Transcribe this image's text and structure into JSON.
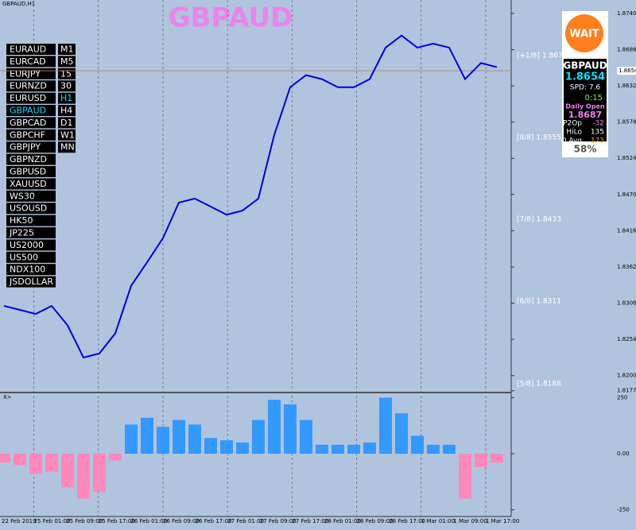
{
  "chart_data": {
    "type": "line",
    "window_label": "GBPAUD,H1",
    "title": "GBPAUD",
    "color": "#0000dd",
    "values": [
      1.8304,
      1.8298,
      1.8292,
      1.8304,
      1.8275,
      1.8227,
      1.8233,
      1.8263,
      1.8334,
      1.8369,
      1.8405,
      1.8458,
      1.8464,
      1.8452,
      1.844,
      1.8446,
      1.8464,
      1.8559,
      1.863,
      1.8648,
      1.8642,
      1.863,
      1.863,
      1.8642,
      1.8689,
      1.8707,
      1.8689,
      1.8695,
      1.8689,
      1.8642,
      1.8666,
      1.866
    ],
    "ylim": [
      1.8176,
      1.876
    ],
    "yticks": [
      {
        "value": 1.874,
        "label": "1.87400"
      },
      {
        "value": 1.8686,
        "label": "1.86860"
      },
      {
        "value": 1.8632,
        "label": "1.86320"
      },
      {
        "value": 1.8578,
        "label": "1.85780"
      },
      {
        "value": 1.8524,
        "label": "1.85240"
      },
      {
        "value": 1.847,
        "label": "1.84700"
      },
      {
        "value": 1.8416,
        "label": "1.84160"
      },
      {
        "value": 1.8362,
        "label": "1.83620"
      },
      {
        "value": 1.8308,
        "label": "1.83080"
      },
      {
        "value": 1.8254,
        "label": "1.82540"
      },
      {
        "value": 1.82,
        "label": "1.82000"
      },
      {
        "value": 1.81775,
        "label": "1.81775"
      }
    ],
    "current_price": {
      "value": 1.86545,
      "label": "1.86545"
    },
    "levels": [
      {
        "value": 1.8677,
        "label": "[+1/8] 1.8677"
      },
      {
        "value": 1.8555,
        "label": "[8/8] 1.8555"
      },
      {
        "value": 1.8433,
        "label": "[7/8] 1.8433"
      },
      {
        "value": 1.8311,
        "label": "[6/8] 1.8311"
      },
      {
        "value": 1.8188,
        "label": "[5/8] 1.8188"
      }
    ],
    "xticks": [
      "22 Feb 2019",
      "25 Feb 01:00",
      "25 Feb 09:00",
      "25 Feb 17:00",
      "26 Feb 01:00",
      "26 Feb 09:00",
      "26 Feb 17:00",
      "27 Feb 01:00",
      "27 Feb 09:00",
      "27 Feb 17:00",
      "28 Feb 01:00",
      "28 Feb 09:00",
      "28 Feb 17:00",
      "1 Mar 01:00",
      "1 Mar 09:00",
      "1 Mar 17:00"
    ],
    "symbols": [
      [
        "EURAUD",
        "M1"
      ],
      [
        "EURCAD",
        "M5"
      ],
      [
        "EURJPY",
        "15"
      ],
      [
        "EURNZD",
        "30"
      ],
      [
        "EURUSD",
        "H1"
      ],
      [
        "GBPAUD",
        "H4"
      ],
      [
        "GBPCAD",
        "D1"
      ],
      [
        "GBPCHF",
        "W1"
      ],
      [
        "GBPJPY",
        "MN"
      ],
      [
        "GBPNZD"
      ],
      [
        "GBPUSD"
      ],
      [
        "XAUUSD"
      ],
      [
        "WS30"
      ],
      [
        "USOUSD"
      ],
      [
        "HK50"
      ],
      [
        "JP225"
      ],
      [
        "US2000"
      ],
      [
        "US500"
      ],
      [
        "NDX100"
      ],
      [
        "JSDOLLAR"
      ]
    ],
    "info_panel": {
      "status": "WAIT",
      "symbol": "GBPAUD",
      "price": "1.8654",
      "spread": "SPD: 7.6",
      "timer": "0:15",
      "daily_open_label": "Daily Open",
      "daily_open": "1.8687",
      "rows": [
        [
          "P2Op",
          "-32"
        ],
        [
          "HiLo",
          "135"
        ],
        [
          "D.Avg",
          "173"
        ]
      ],
      "percent": "58%"
    },
    "oscillator": {
      "label": "X>",
      "values": [
        -40,
        -50,
        -90,
        -80,
        -150,
        -200,
        -170,
        -30,
        130,
        160,
        120,
        150,
        130,
        70,
        60,
        50,
        150,
        240,
        220,
        150,
        40,
        40,
        40,
        50,
        250,
        180,
        80,
        40,
        40,
        -200,
        -60,
        -40
      ],
      "ylim": [
        -262,
        262
      ],
      "yticks": [
        250,
        {
          "value": 0,
          "label": "0.00"
        },
        -250
      ]
    }
  }
}
